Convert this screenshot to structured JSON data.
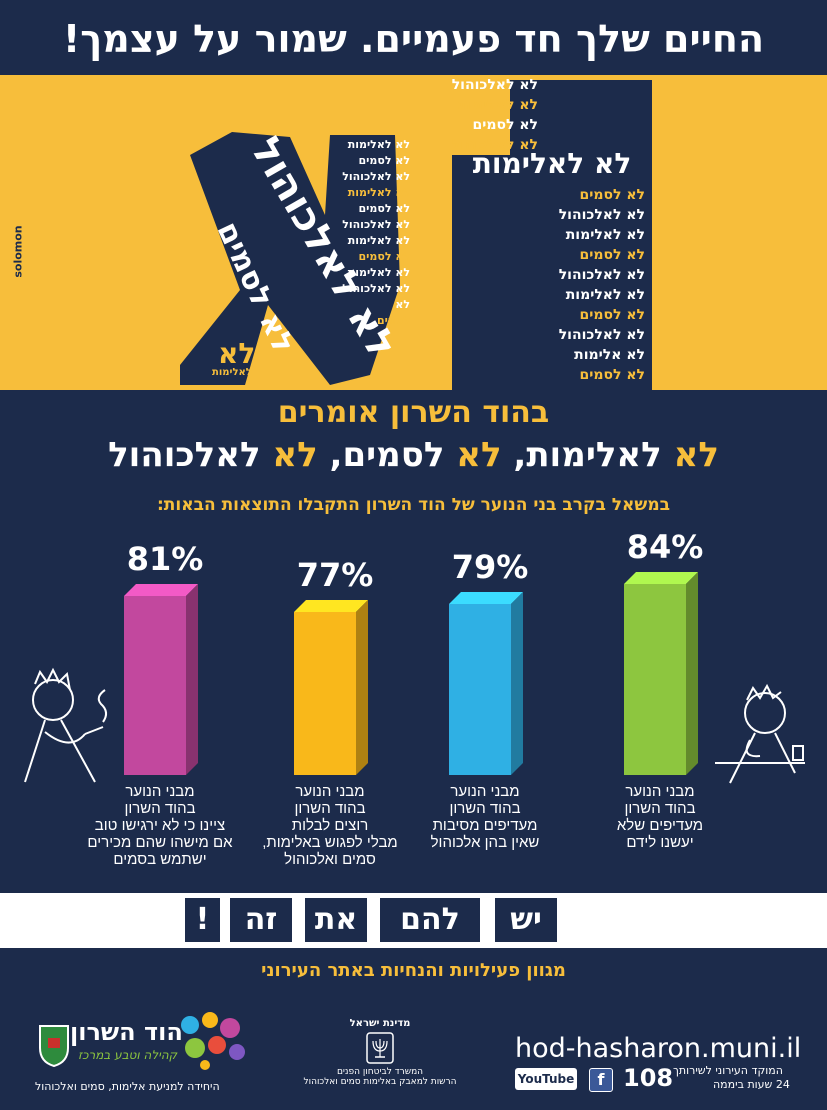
{
  "header": {
    "title": "החיים שלך חד פעמיים. שמור על עצמך!"
  },
  "hero": {
    "brand": "solomon",
    "big_letters": "לא",
    "left_vertical": "לא לאלכוהול",
    "left_vertical2": "לא לסמים",
    "left_small": "לא",
    "left_small2": "לאלימות",
    "mid_stack": [
      "לא לאלימות",
      "לא לסמים",
      "לא לאלכוהול",
      "לא לאלימות",
      "לא לסמים",
      "לא לאלכוהול",
      "לא לאלימות",
      "לא לסמים",
      "לא לאלימות",
      "לא לאלכוהול",
      "לא",
      "לסמים"
    ],
    "top_stack": [
      "לא לאלכוהול",
      "לא לאלימות",
      "לא לסמים",
      "לא לאלכוהול"
    ],
    "big_phrase": "לא לאלימות",
    "right_stack": [
      "לא לסמים",
      "לא לאלכוהול",
      "לא לאלימות",
      "לא לסמים",
      "לא לאלכוהול",
      "לא לאלימות",
      "לא לסמים",
      "לא לאלכוהול",
      "לא אלימות",
      "לא לסמים"
    ]
  },
  "main": {
    "headline1": "בהוד השרון אומרים",
    "headline2_parts": [
      "לא",
      " לאלימות, ",
      "לא",
      " לסמים, ",
      "לא",
      " לאלכוהול"
    ],
    "survey_intro": "במשאל בקרב בני הנוער של הוד השרון התקבלו התוצאות הבאות:"
  },
  "chart_data": {
    "type": "bar",
    "categories": [
      "מבני הנוער בהוד השרון ציינו כי לא ירגישו טוב אם מישהו שהם מכירים ישתמש בסמים",
      "מבני הנוער בהוד השרון רוצים לבלות מבלי לפגוש באלימות, סמים ואלכוהול",
      "מבני הנוער בהוד השרון מעדיפים מסיבות שאין בהן אלכוהול",
      "מבני הנוער בהוד השרון מעדיפים שלא יעשנו לידם"
    ],
    "values": [
      81,
      77,
      79,
      84
    ],
    "labels": [
      "81%",
      "77%",
      "79%",
      "84%"
    ],
    "colors": [
      "#c2489e",
      "#f9b81a",
      "#2fb0e4",
      "#8dc63f"
    ],
    "caption_lines": [
      [
        "מבני הנוער",
        "בהוד השרון",
        "ציינו כי לא ירגישו טוב",
        "אם מישהו שהם מכירים",
        "ישתמש בסמים"
      ],
      [
        "מבני הנוער",
        "בהוד השרון",
        "רוצים לבלות",
        "מבלי לפגוש באלימות,",
        "סמים ואלכוהול"
      ],
      [
        "מבני הנוער",
        "בהוד השרון",
        "מעדיפים מסיבות",
        "שאין בהן אלכוהול"
      ],
      [
        "מבני הנוער",
        "בהוד השרון",
        "מעדיפים שלא",
        "יעשנו לידם"
      ]
    ]
  },
  "slogan": {
    "words": [
      "יש",
      "להם",
      "את",
      "זה",
      "!"
    ]
  },
  "footer": {
    "activities": "מגוון פעילויות והנחיות באתר העירוני",
    "city_name": "הוד השרון",
    "city_tagline": "קהילה וטבע במרכז",
    "unit": "היחידה למניעת אלימות, סמים ואלכוהול",
    "state": "מדינת ישראל",
    "ministry": "המשרד לביטחון הפנים",
    "authority": "הרשות למאבק באלימות סמים ואלכוהול",
    "website": "hod-hasharon.muni.il",
    "hotline_number": "108",
    "hotline_text": "המוקד העירוני לשירותך",
    "hotline_hours": "24 שעות ביממה",
    "youtube": "YouTube",
    "facebook": "f"
  }
}
